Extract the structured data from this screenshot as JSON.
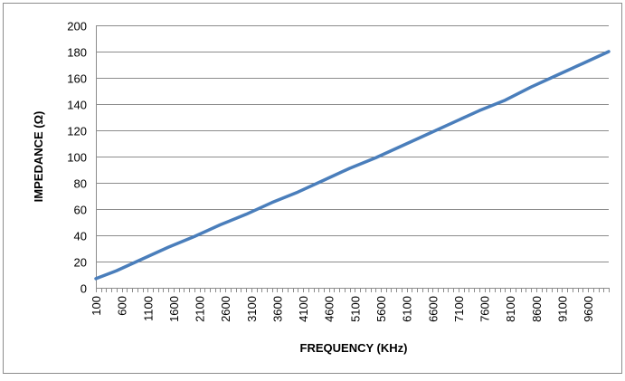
{
  "chart_data": {
    "type": "line",
    "xlabel": "FREQUENCY (KHz)",
    "ylabel": "IMPEDANCE (Ω)",
    "ylim": [
      0,
      200
    ],
    "y_ticks": [
      0,
      20,
      40,
      60,
      80,
      100,
      120,
      140,
      160,
      180,
      200
    ],
    "x_tick_labels": [
      "100",
      "600",
      "1100",
      "1600",
      "2100",
      "2600",
      "3100",
      "3600",
      "4100",
      "4600",
      "5100",
      "5600",
      "6100",
      "6600",
      "7100",
      "7600",
      "8100",
      "8600",
      "9100",
      "9600"
    ],
    "xlim": [
      100,
      10000
    ],
    "grid": "horizontal",
    "legend": "none",
    "series": [
      {
        "color": "#4a7ebb",
        "x": [
          100,
          500,
          1000,
          1500,
          2000,
          2500,
          3000,
          3500,
          4000,
          4500,
          5000,
          5500,
          6000,
          6500,
          7000,
          7500,
          8000,
          8500,
          9000,
          9500,
          10000
        ],
        "y": [
          7,
          13,
          22,
          31,
          39,
          48,
          56,
          65,
          73,
          82,
          91,
          99,
          108,
          117,
          126,
          135,
          143,
          153,
          162,
          171,
          180
        ]
      }
    ]
  }
}
